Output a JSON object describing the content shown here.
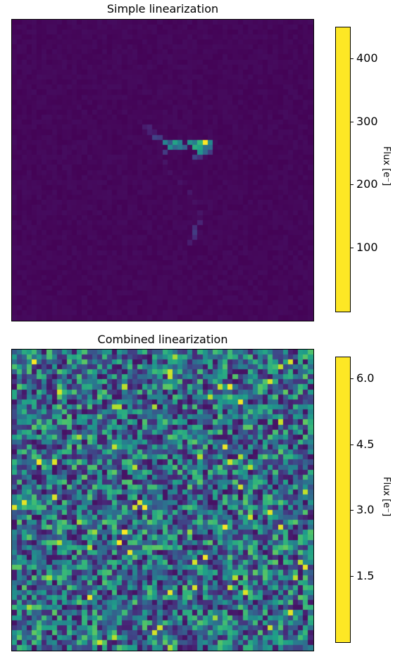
{
  "chart_data": [
    {
      "type": "heatmap",
      "title": "Simple linearization",
      "grid_size": [
        60,
        60
      ],
      "colormap": "viridis",
      "colorbar": {
        "label": "Flux [e⁻]",
        "range": [
          0,
          450
        ],
        "ticks": [
          100,
          200,
          300,
          400
        ],
        "tick_labels": [
          "100",
          "200",
          "300",
          "400"
        ]
      }
    },
    {
      "type": "heatmap",
      "title": "Combined linearization",
      "grid_size": [
        60,
        60
      ],
      "colormap": "viridis",
      "colorbar": {
        "label": "Flux [e⁻]",
        "range": [
          0,
          6.5
        ],
        "ticks": [
          1.5,
          3.0,
          4.5,
          6.0
        ],
        "tick_labels": [
          "1.5",
          "3.0",
          "4.5",
          "6.0"
        ]
      }
    }
  ]
}
